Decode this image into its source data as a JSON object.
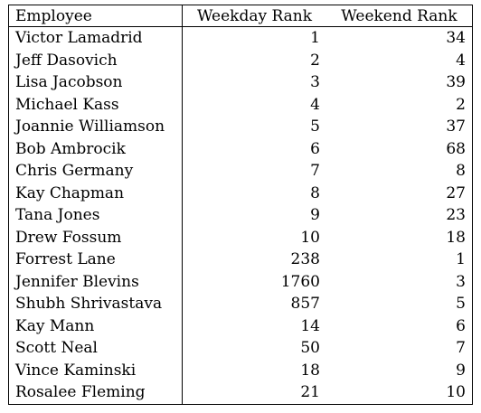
{
  "table": {
    "headers": {
      "employee": "Employee",
      "weekday": "Weekday Rank",
      "weekend": "Weekend Rank"
    },
    "rows": [
      {
        "name": "Victor Lamadrid",
        "weekday": "1",
        "weekend": "34"
      },
      {
        "name": "Jeff Dasovich",
        "weekday": "2",
        "weekend": "4"
      },
      {
        "name": "Lisa Jacobson",
        "weekday": "3",
        "weekend": "39"
      },
      {
        "name": "Michael Kass",
        "weekday": "4",
        "weekend": "2"
      },
      {
        "name": "Joannie Williamson",
        "weekday": "5",
        "weekend": "37"
      },
      {
        "name": "Bob Ambrocik",
        "weekday": "6",
        "weekend": "68"
      },
      {
        "name": "Chris Germany",
        "weekday": "7",
        "weekend": "8"
      },
      {
        "name": "Kay Chapman",
        "weekday": "8",
        "weekend": "27"
      },
      {
        "name": "Tana Jones",
        "weekday": "9",
        "weekend": "23"
      },
      {
        "name": "Drew Fossum",
        "weekday": "10",
        "weekend": "18"
      },
      {
        "name": "Forrest Lane",
        "weekday": "238",
        "weekend": "1"
      },
      {
        "name": "Jennifer Blevins",
        "weekday": "1760",
        "weekend": "3"
      },
      {
        "name": "Shubh Shrivastava",
        "weekday": "857",
        "weekend": "5"
      },
      {
        "name": "Kay Mann",
        "weekday": "14",
        "weekend": "6"
      },
      {
        "name": "Scott Neal",
        "weekday": "50",
        "weekend": "7"
      },
      {
        "name": "Vince Kaminski",
        "weekday": "18",
        "weekend": "9"
      },
      {
        "name": "Rosalee Fleming",
        "weekday": "21",
        "weekend": "10"
      }
    ]
  }
}
